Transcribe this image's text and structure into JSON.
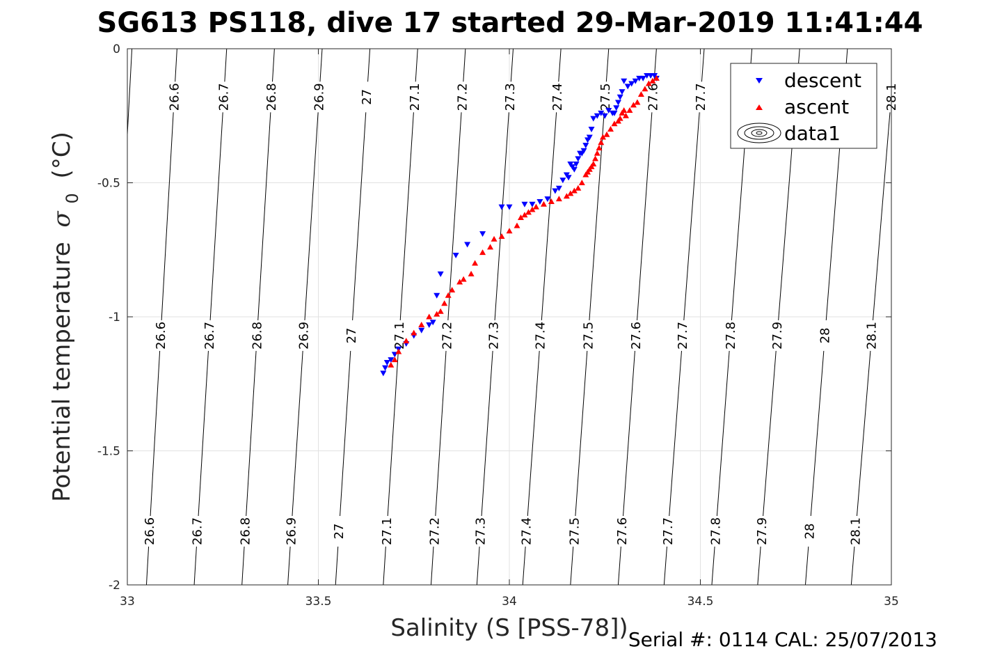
{
  "chart_data": {
    "type": "scatter",
    "title": "SG613 PS118, dive 17 started 29-Mar-2019 11:41:44",
    "xlabel": "Salinity (S [PSS-78])",
    "ylabel": "Potential temperature",
    "ylabel_symbol": "σ",
    "ylabel_subscript": "0",
    "ylabel_unit": "(°C)",
    "xlim": [
      33,
      35
    ],
    "ylim": [
      -2,
      0
    ],
    "xticks": [
      "33",
      "33.5",
      "34",
      "34.5",
      "35"
    ],
    "yticks": [
      "0",
      "-0.5",
      "-1",
      "-1.5",
      "-2"
    ],
    "xtick_values": [
      33,
      33.5,
      34,
      34.5,
      35
    ],
    "ytick_values": [
      0,
      -0.5,
      -1,
      -1.5,
      -2
    ],
    "grid": true,
    "legend_position": "top-right",
    "series": [
      {
        "name": "descent",
        "marker": "triangle-down",
        "color": "#0000ff",
        "x": [
          34.385,
          34.38,
          34.37,
          34.36,
          34.35,
          34.34,
          34.33,
          34.32,
          34.31,
          34.3,
          34.295,
          34.29,
          34.285,
          34.28,
          34.275,
          34.27,
          34.26,
          34.25,
          34.24,
          34.23,
          34.22,
          34.215,
          34.21,
          34.205,
          34.2,
          34.195,
          34.19,
          34.185,
          34.18,
          34.175,
          34.17,
          34.165,
          34.16,
          34.155,
          34.15,
          34.14,
          34.13,
          34.12,
          34.1,
          34.08,
          34.06,
          34.04,
          34.0,
          33.98,
          33.93,
          33.89,
          33.86,
          33.82,
          33.81,
          33.8,
          33.79,
          33.77,
          33.75,
          33.73,
          33.71,
          33.7,
          33.69,
          33.68,
          33.675,
          33.67
        ],
        "y": [
          -0.11,
          -0.1,
          -0.1,
          -0.1,
          -0.11,
          -0.11,
          -0.12,
          -0.13,
          -0.14,
          -0.12,
          -0.16,
          -0.18,
          -0.2,
          -0.22,
          -0.24,
          -0.24,
          -0.23,
          -0.25,
          -0.24,
          -0.25,
          -0.26,
          -0.3,
          -0.33,
          -0.34,
          -0.36,
          -0.38,
          -0.39,
          -0.39,
          -0.41,
          -0.43,
          -0.45,
          -0.44,
          -0.43,
          -0.48,
          -0.47,
          -0.49,
          -0.52,
          -0.53,
          -0.56,
          -0.57,
          -0.58,
          -0.58,
          -0.59,
          -0.59,
          -0.69,
          -0.73,
          -0.77,
          -0.84,
          -0.92,
          -1.02,
          -1.03,
          -1.05,
          -1.07,
          -1.1,
          -1.12,
          -1.14,
          -1.16,
          -1.17,
          -1.19,
          -1.21
        ]
      },
      {
        "name": "ascent",
        "marker": "triangle-up",
        "color": "#ff0000",
        "x": [
          34.385,
          34.375,
          34.365,
          34.355,
          34.345,
          34.335,
          34.325,
          34.315,
          34.305,
          34.3,
          34.295,
          34.29,
          34.285,
          34.275,
          34.265,
          34.255,
          34.245,
          34.24,
          34.235,
          34.23,
          34.225,
          34.22,
          34.215,
          34.21,
          34.205,
          34.2,
          34.19,
          34.18,
          34.17,
          34.16,
          34.15,
          34.13,
          34.11,
          34.09,
          34.07,
          34.06,
          34.05,
          34.04,
          34.03,
          34.02,
          34.0,
          33.98,
          33.96,
          33.95,
          33.93,
          33.91,
          33.9,
          33.88,
          33.87,
          33.85,
          33.84,
          33.83,
          33.82,
          33.81,
          33.79,
          33.77,
          33.75,
          33.73,
          33.71,
          33.7,
          33.69
        ],
        "y": [
          -0.11,
          -0.12,
          -0.13,
          -0.15,
          -0.17,
          -0.2,
          -0.21,
          -0.23,
          -0.25,
          -0.23,
          -0.24,
          -0.26,
          -0.27,
          -0.28,
          -0.3,
          -0.32,
          -0.33,
          -0.35,
          -0.37,
          -0.39,
          -0.41,
          -0.43,
          -0.44,
          -0.45,
          -0.46,
          -0.47,
          -0.5,
          -0.52,
          -0.53,
          -0.54,
          -0.55,
          -0.56,
          -0.57,
          -0.58,
          -0.59,
          -0.6,
          -0.61,
          -0.62,
          -0.63,
          -0.66,
          -0.68,
          -0.7,
          -0.71,
          -0.74,
          -0.76,
          -0.8,
          -0.84,
          -0.86,
          -0.87,
          -0.9,
          -0.92,
          -0.95,
          -0.98,
          -0.99,
          -1.0,
          -1.03,
          -1.06,
          -1.09,
          -1.13,
          -1.16,
          -1.18
        ]
      }
    ],
    "contours": {
      "legend_name": "data1",
      "lines": [
        {
          "label": "26.6",
          "sal_top": 33.13,
          "sal_bottom": 33.05
        },
        {
          "label": "26.7",
          "sal_top": 33.26,
          "sal_bottom": 33.175
        },
        {
          "label": "26.8",
          "sal_top": 33.385,
          "sal_bottom": 33.3
        },
        {
          "label": "26.9",
          "sal_top": 33.51,
          "sal_bottom": 33.42
        },
        {
          "label": "27",
          "sal_top": 33.635,
          "sal_bottom": 33.545
        },
        {
          "label": "27.1",
          "sal_top": 33.76,
          "sal_bottom": 33.67
        },
        {
          "label": "27.2",
          "sal_top": 33.885,
          "sal_bottom": 33.795
        },
        {
          "label": "27.3",
          "sal_top": 34.01,
          "sal_bottom": 33.915
        },
        {
          "label": "27.4",
          "sal_top": 34.135,
          "sal_bottom": 34.035
        },
        {
          "label": "27.5",
          "sal_top": 34.26,
          "sal_bottom": 34.16
        },
        {
          "label": "27.6",
          "sal_top": 34.385,
          "sal_bottom": 34.285
        },
        {
          "label": "27.7",
          "sal_top": 34.51,
          "sal_bottom": 34.405
        },
        {
          "label": "27.8",
          "sal_top": 34.635,
          "sal_bottom": 34.53
        },
        {
          "label": "27.9",
          "sal_top": 34.76,
          "sal_bottom": 34.65
        },
        {
          "label": "28",
          "sal_top": 34.885,
          "sal_bottom": 34.775
        },
        {
          "label": "28.1",
          "sal_top": 35.01,
          "sal_bottom": 34.895
        }
      ],
      "label_rows": [
        {
          "temp": -0.18,
          "labels": [
            "26.6",
            "26.7",
            "26.8",
            "26.9",
            "27",
            "27.1",
            "27.2",
            "27.3",
            "27.4",
            "27.5",
            "27.6",
            "27.7",
            "28.1"
          ]
        },
        {
          "temp": -1.07,
          "labels": [
            "26.6",
            "26.7",
            "26.8",
            "26.9",
            "27",
            "27.1",
            "27.2",
            "27.3",
            "27.4",
            "27.5",
            "27.6",
            "27.7",
            "27.8",
            "27.9",
            "28",
            "28.1"
          ]
        },
        {
          "temp": -1.8,
          "labels": [
            "26.6",
            "26.7",
            "26.8",
            "26.9",
            "27",
            "27.1",
            "27.2",
            "27.3",
            "27.4",
            "27.5",
            "27.6",
            "27.7",
            "27.8",
            "27.9",
            "28",
            "28.1"
          ]
        }
      ]
    },
    "footer": "Serial #: 0114  CAL: 25/07/2013"
  }
}
